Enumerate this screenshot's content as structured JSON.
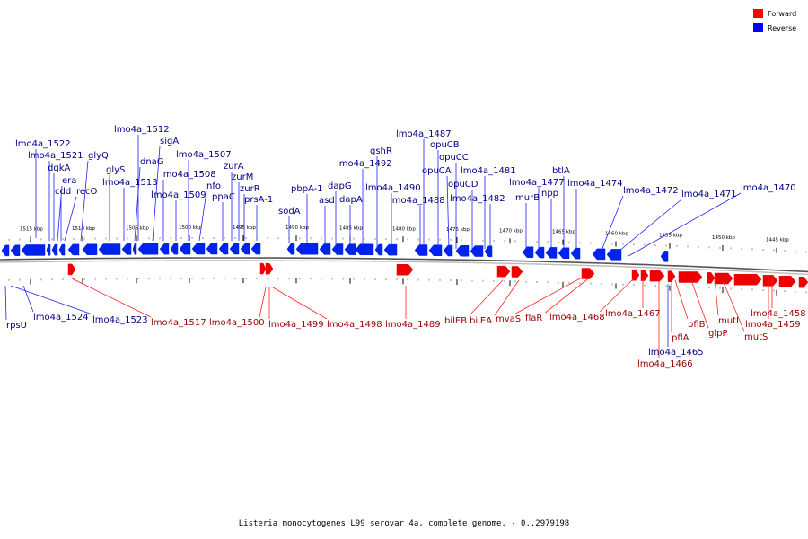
{
  "caption": "Listeria monocytogenes L99 serovar 4a, complete genome. - 0..2979198",
  "legend": [
    {
      "label": "Forward",
      "color": "#ff0000"
    },
    {
      "label": "Reverse",
      "color": "#0000ff"
    }
  ],
  "colors": {
    "reverse_gene": "#0022ee",
    "forward_gene": "#ee0000",
    "reverse_label": "#000080",
    "forward_label": "#990000",
    "reverse_line": "#2020ff",
    "forward_line": "#ff2020",
    "backbone": "#888888"
  },
  "scale_labels": [
    "1515 kbp",
    "1510 kbp",
    "1505 kbp",
    "1500 kbp",
    "1495 kbp",
    "1490 kbp",
    "1485 kbp",
    "1480 kbp",
    "1475 kbp",
    "1470 kbp",
    "1465 kbp",
    "1460 kbp",
    "1455 kbp",
    "1450 kbp",
    "1445 kbp"
  ],
  "reverse_labels": [
    "lmo4a_1522",
    "lmo4a_1521",
    "dgkA",
    "era",
    "cdd",
    "recO",
    "glyQ",
    "glyS",
    "lmo4a_1513",
    "lmo4a_1512",
    "dnaG",
    "sigA",
    "lmo4a_1508",
    "lmo4a_1509",
    "lmo4a_1507",
    "nfo",
    "ppaC",
    "zurA",
    "zurM",
    "zurR",
    "prsA-1",
    "sodA",
    "pbpA-1",
    "asd",
    "dapG",
    "dapA",
    "lmo4a_1492",
    "gshR",
    "lmo4a_1490",
    "lmo4a_1488",
    "lmo4a_1487",
    "opuCB",
    "opuCA",
    "opuCC",
    "opuCD",
    "lmo4a_1481",
    "lmo4a_1482",
    "murB",
    "lmo4a_1477",
    "npp",
    "btlA",
    "lmo4a_1474",
    "lmo4a_1472",
    "lmo4a_1471",
    "lmo4a_1470",
    "rpsU",
    "lmo4a_1524",
    "lmo4a_1523",
    "lmo4a_1465"
  ],
  "forward_labels": [
    "lmo4a_1517",
    "lmo4a_1500",
    "lmo4a_1499",
    "lmo4a_1498",
    "lmo4a_1489",
    "bilEB",
    "bilEA",
    "mvaS",
    "flaR",
    "lmo4a_1468",
    "lmo4a_1467",
    "pflA",
    "lmo4a_1466",
    "pflB",
    "glpP",
    "mutL",
    "mutS",
    "lmo4a_1459",
    "lmo4a_1458"
  ]
}
